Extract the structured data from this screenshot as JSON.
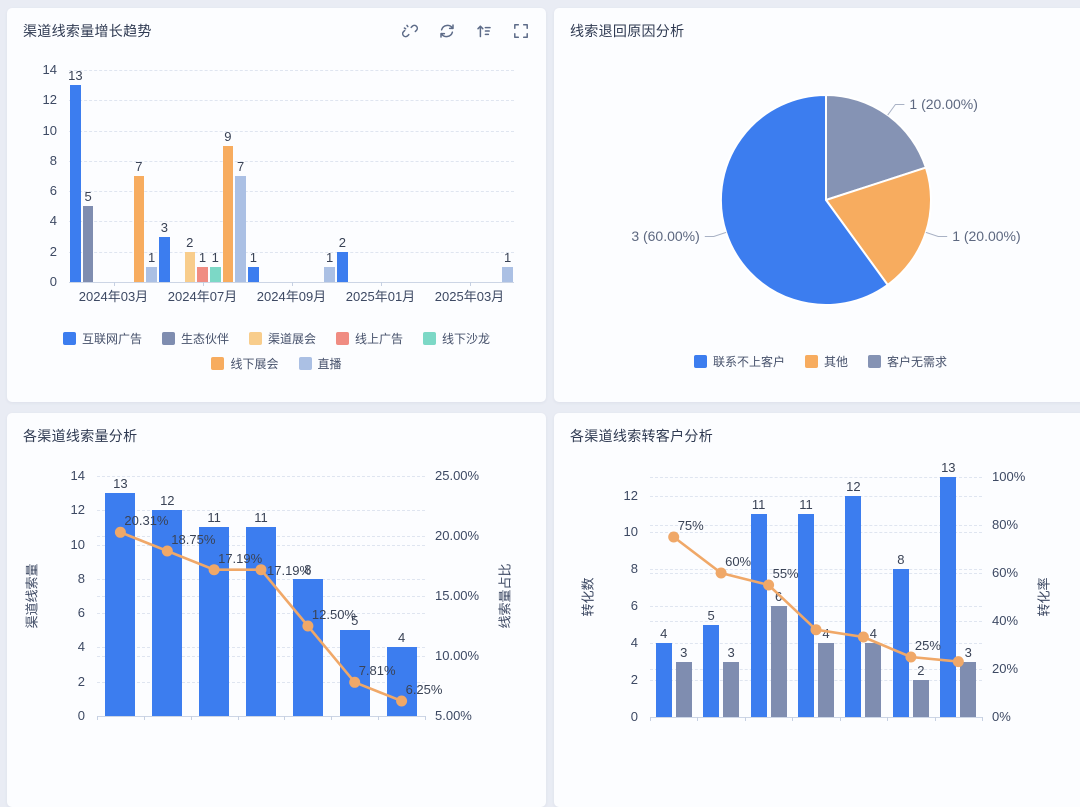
{
  "app": {
    "background": "#e9ecf4",
    "card_background": "#fcfdff"
  },
  "cards": {
    "trend": {
      "title": "渠道线索量增长趋势",
      "toolbar_icons": [
        "unlink",
        "refresh",
        "sort-ascending",
        "fullscreen"
      ]
    },
    "reasons": {
      "title": "线索退回原因分析"
    },
    "volume": {
      "title": "各渠道线索量分析"
    },
    "conversion": {
      "title": "各渠道线索转客户分析"
    }
  },
  "chart_data": [
    {
      "id": "channel-lead-growth-trend",
      "type": "bar",
      "title": "渠道线索量增长趋势",
      "categories": [
        "2024年03月",
        "2024年07月",
        "2024年09月",
        "2025年01月",
        "2025年03月"
      ],
      "series": [
        {
          "name": "互联网广告",
          "color": "#3c7def",
          "values": [
            13,
            3,
            1,
            2,
            0
          ]
        },
        {
          "name": "生态伙伴",
          "color": "#7f8db0",
          "values": [
            5,
            0,
            0,
            0,
            0
          ]
        },
        {
          "name": "渠道展会",
          "color": "#f8cd8c",
          "values": [
            0,
            2,
            0,
            0,
            0
          ]
        },
        {
          "name": "线上广告",
          "color": "#f08c82",
          "values": [
            0,
            1,
            0,
            0,
            0
          ]
        },
        {
          "name": "线下沙龙",
          "color": "#7cd8c6",
          "values": [
            0,
            1,
            0,
            0,
            0
          ]
        },
        {
          "name": "线下展会",
          "color": "#f7ac5f",
          "values": [
            7,
            9,
            0,
            0,
            0
          ]
        },
        {
          "name": "直播",
          "color": "#abc0e4",
          "values": [
            1,
            7,
            1,
            0,
            1
          ]
        }
      ],
      "ylim": [
        0,
        14
      ],
      "ytick_step": 2,
      "grid": true,
      "legend_position": "bottom",
      "legend_rows": [
        [
          0,
          1,
          2,
          3,
          4
        ],
        [
          5,
          6
        ]
      ]
    },
    {
      "id": "lead-return-reason",
      "type": "pie",
      "title": "线索退回原因分析",
      "start_at_top": true,
      "clockwise": true,
      "slices": [
        {
          "name": "客户无需求",
          "value": 1,
          "percent": 20.0,
          "label": "1 (20.00%)",
          "color": "#8593b4"
        },
        {
          "name": "其他",
          "value": 1,
          "percent": 20.0,
          "label": "1 (20.00%)",
          "color": "#f7ac5f"
        },
        {
          "name": "联系不上客户",
          "value": 3,
          "percent": 60.0,
          "label": "3 (60.00%)",
          "color": "#3c7def"
        }
      ],
      "legend_order": [
        "联系不上客户",
        "其他",
        "客户无需求"
      ]
    },
    {
      "id": "channel-lead-volume",
      "type": "bar+line",
      "title": "各渠道线索量分析",
      "x_labels_visible": false,
      "bars": [
        {
          "color": "#3c7def",
          "values": [
            13,
            12,
            11,
            11,
            8,
            5,
            4
          ]
        }
      ],
      "line": {
        "color": "#f0a868",
        "percents": [
          20.31,
          18.75,
          17.19,
          17.19,
          12.5,
          7.81,
          6.25
        ],
        "labels": [
          "20.31%",
          "18.75%",
          "17.19%",
          "17.19%",
          "12.50%",
          "7.81%",
          "6.25%"
        ]
      },
      "left_axis": {
        "name": "渠道线索量",
        "min": 0,
        "max": 14,
        "tick_step": 2
      },
      "right_axis": {
        "name": "线索量占比",
        "min": 5,
        "max": 25,
        "tick_labels": [
          "5.00%",
          "10.00%",
          "15.00%",
          "20.00%",
          "25.00%"
        ]
      }
    },
    {
      "id": "channel-lead-conversion",
      "type": "bar+line",
      "title": "各渠道线索转客户分析",
      "x_labels_visible": false,
      "bars": [
        {
          "color": "#3c7def",
          "values": [
            4,
            5,
            11,
            11,
            12,
            8,
            13
          ]
        },
        {
          "color": "#7f8db0",
          "values": [
            3,
            3,
            6,
            4,
            4,
            2,
            3
          ]
        }
      ],
      "line": {
        "color": "#f0a868",
        "percents": [
          75,
          60,
          55,
          36.36,
          33.33,
          25,
          23.08
        ],
        "labels": [
          "75%",
          "60%",
          "55%",
          null,
          null,
          "25%",
          null
        ]
      },
      "left_axis": {
        "name": "转化数",
        "min": 0,
        "max": 13,
        "tick_step": 2,
        "tick_label_max": 12
      },
      "right_axis": {
        "name": "转化率",
        "min": 0,
        "max": 100,
        "tick_labels": [
          "0%",
          "20%",
          "40%",
          "60%",
          "80%",
          "100%"
        ]
      }
    }
  ]
}
